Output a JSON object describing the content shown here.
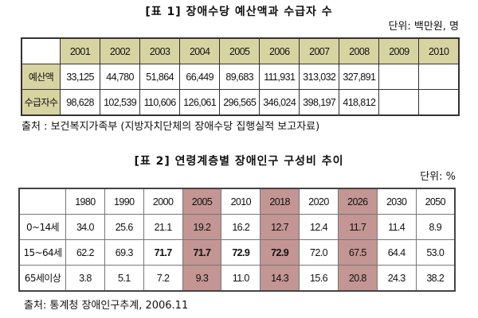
{
  "table1": {
    "title": "[표 1] 장애수당 예산액과 수급자 수",
    "unit": "단위: 백만원, 명",
    "years": [
      "2001",
      "2002",
      "2003",
      "2004",
      "2005",
      "2006",
      "2007",
      "2008",
      "2009",
      "2010"
    ],
    "rows": [
      {
        "label": "예산액",
        "values": [
          "33,125",
          "44,780",
          "51,864",
          "66,449",
          "89,683",
          "111,931",
          "313,032",
          "327,891",
          "",
          ""
        ]
      },
      {
        "label": "수급자수",
        "values": [
          "98,628",
          "102,539",
          "110,606",
          "126,061",
          "296,565",
          "346,024",
          "398,197",
          "418,812",
          "",
          ""
        ]
      }
    ],
    "source": "출처 : 보건복지가족부 (지방자치단체의 장애수당 집행실적 보고자료)"
  },
  "table2": {
    "title": "[표 2] 연령계층별 장애인구 구성비 추이",
    "unit": "단위: %",
    "years": [
      "1980",
      "1990",
      "2000",
      "2005",
      "2010",
      "2018",
      "2020",
      "2026",
      "2030",
      "2050"
    ],
    "highlight_cols": [
      3,
      5,
      7
    ],
    "rows": [
      {
        "label": "0~14세",
        "values": [
          "34.0",
          "25.6",
          "21.1",
          "19.2",
          "16.2",
          "12.7",
          "12.4",
          "11.7",
          "11.4",
          "8.9"
        ],
        "bold": []
      },
      {
        "label": "15~64세",
        "values": [
          "62.2",
          "69.3",
          "71.7",
          "71.7",
          "72.9",
          "72.9",
          "72.0",
          "67.5",
          "64.4",
          "53.0"
        ],
        "bold": [
          2,
          3,
          4,
          5
        ]
      },
      {
        "label": "65세이상",
        "values": [
          "3.8",
          "5.1",
          "7.2",
          "9.3",
          "11.0",
          "14.3",
          "15.6",
          "20.8",
          "24.3",
          "38.2"
        ],
        "bold": []
      }
    ],
    "source": "출처: 통계청 장애인구추계, 2006.11"
  },
  "colors": {
    "header_bg": "#d8d4a2",
    "highlight_bg": "#c39593"
  }
}
